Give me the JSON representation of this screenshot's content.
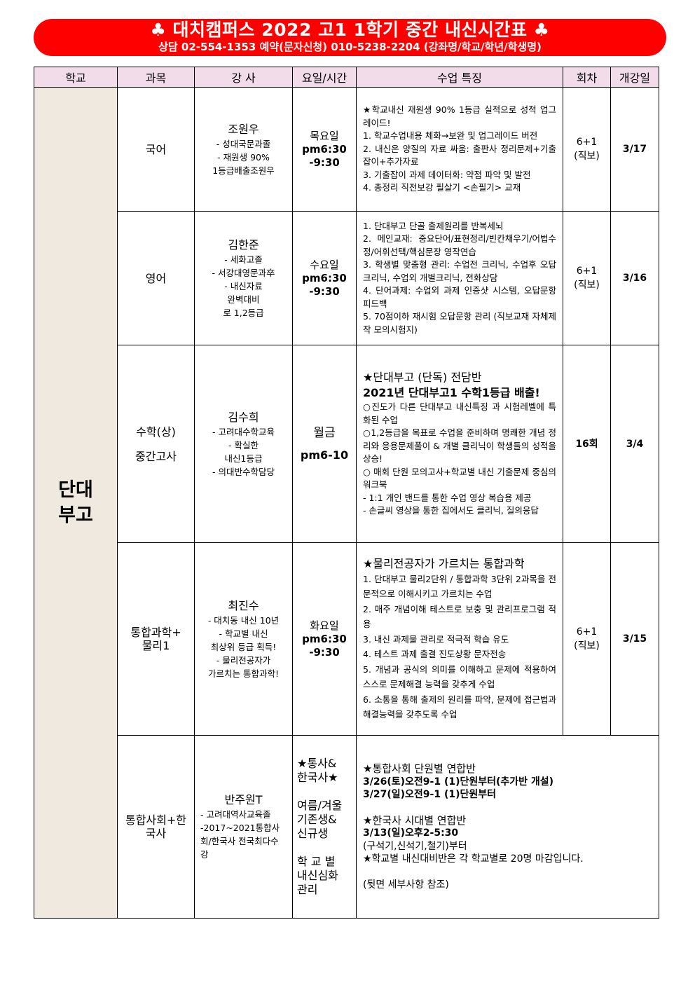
{
  "banner": {
    "title": "♣ 대치캠퍼스 2022 고1 1학기 중간 내신시간표 ♣",
    "contact": "상담 02-554-1353    예약(문자신청) 010-5238-2204 (강좌명/학교/학년/학생명)"
  },
  "colors": {
    "banner": "#ff0000",
    "header_bg": "#f2dcea",
    "school_bg": "#efe9df"
  },
  "headers": [
    "학교",
    "과목",
    "강 사",
    "요일/시간",
    "수업 특징",
    "회차",
    "개강일"
  ],
  "school": [
    "단대",
    "부고"
  ],
  "rows": [
    {
      "subject": [
        "국어"
      ],
      "teacher_name": "조원우",
      "teacher_lines": [
        "- 성대국문과졸",
        "- 재원생 90%",
        "1등급배출조원우"
      ],
      "time": [
        "목요일",
        "pm6:30",
        "-9:30"
      ],
      "features": [
        "★학교내신 재원생 90% 1등급 실적으로 성적 업그레이드!",
        "1. 학교수업내용 체화→보완 및 업그레이드 버전",
        "2. 내신은 양질의 자료 싸움: 출판사 정리문제+기출잡이+추가자료",
        "3. 기출잡이 과제 데이터화: 약점 파악 및 발전",
        "4. 총정리 직전보강 필살기 <손필기> 교재"
      ],
      "count": [
        "6+1",
        "(직보)"
      ],
      "open": "3/17"
    },
    {
      "subject": [
        "영어"
      ],
      "teacher_name": "김한준",
      "teacher_lines": [
        "- 세화고졸",
        "- 서강대영문과卒",
        "- 내신자료",
        "완벽대비",
        "로 1,2등급"
      ],
      "time": [
        "수요일",
        "pm6:30",
        "-9:30"
      ],
      "features": [
        "1. 단대부고 단골 출제원리를 반복세뇌",
        "2. 메인교재: 중요단어/표현정리/빈칸채우기/어법수정/어휘선택/핵심문장 영작연습",
        "3. 학생별 맞춤형 관리: 수업전 크리닉, 수업후 오답크리닉, 수업외 개별크리닉, 전화상담",
        "4. 단어과제: 수업외 과제 인증샷 시스템, 오답문항 피드백",
        "5. 70점이하 재시험 오답문항 관리 (직보교재 자체제작 모의시험지)"
      ],
      "count": [
        "6+1",
        "(직보)"
      ],
      "open": "3/16"
    },
    {
      "subject": [
        "수학(상)",
        "중간고사"
      ],
      "teacher_name": "김수희",
      "teacher_lines": [
        "- 고려대수학교육",
        "- 확실한",
        "내신1등급",
        "- 의대반수학담당"
      ],
      "time": [
        "월금",
        "pm6-10"
      ],
      "features_big": [
        "★단대부고 (단독) 전담반",
        "2021년 단대부고1 수학1등급 배출!"
      ],
      "features": [
        "○진도가 다른 단대부고 내신특징 과 시험레벨에 특화된 수업",
        "○1,2등급을 목표로 수업을 준비하며 명쾌한 개념 정리와 응용문제풀이 & 개별 클리닉이 학생들의 성적을 상승!",
        "○ 매회 단원 모의고사+학교별 내신 기출문제 중심의 워크북",
        "- 1:1 개인 밴드를 통한 수업 영상 복습용 제공",
        "- 손글씨 영상을 통한 집에서도 클리닉, 질의응답"
      ],
      "count": [
        "16회"
      ],
      "open": "3/4"
    },
    {
      "subject": [
        "통합과학+",
        "물리1"
      ],
      "teacher_name": "최진수",
      "teacher_lines": [
        "- 대치동 내신 10년",
        "- 학교별 내신",
        "최상위 등급 획득!",
        "- 물리전공자가",
        "가르치는 통합과학!"
      ],
      "time": [
        "화요일",
        "pm6:30",
        "-9:30"
      ],
      "features_big": [
        "★물리전공자가 가르치는 통합과학"
      ],
      "features": [
        "1. 단대부고 물리2단위 / 통합과학 3단위 2과목을 전문적으로 이해시키고 가르치는 수업",
        "2. 매주 개념이해 테스트로 보충 및 관리프로그램 적용",
        "3. 내신 과제물 관리로 적극적 학습 유도",
        "4. 테스트 과제 출결 진도상황 문자전송",
        "5. 개념과 공식의 의미를 이해하고 문제에 적용하여 스스로 문제해결 능력을 갖추게 수업",
        "6. 소통을 통해 출제의 원리를 파악, 문제에 접근법과 해결능력을 갖추도록 수업"
      ],
      "count": [
        "6+1",
        "(직보)"
      ],
      "open": "3/15"
    },
    {
      "subject": [
        "통합사회+한",
        "국사"
      ],
      "teacher_name": "반주원T",
      "teacher_lines": [
        "- 고려대역사교육졸",
        "-2017~2021통합사회/한국사 전국최다수강"
      ],
      "time": [
        "★통사&",
        "한국사★",
        "",
        "여름/겨울",
        "기존생&",
        "신규생",
        "",
        "학 교 별",
        "내신심화",
        "관리"
      ],
      "features": [
        "★통합사회 단원별 연합반",
        "3/26(토)오전9-1 (1)단원부터(추가반 개설)",
        "3/27(일)오전9-1 (1)단원부터",
        "",
        "★한국사 시대별 연합반",
        "3/13(일)오후2-5:30",
        "(구석기,신석기,철기)부터",
        "★학교별 내신대비반은 각 학교별로 20명 마감입니다.",
        "",
        "(뒷면 세부사항 참조)"
      ]
    }
  ]
}
